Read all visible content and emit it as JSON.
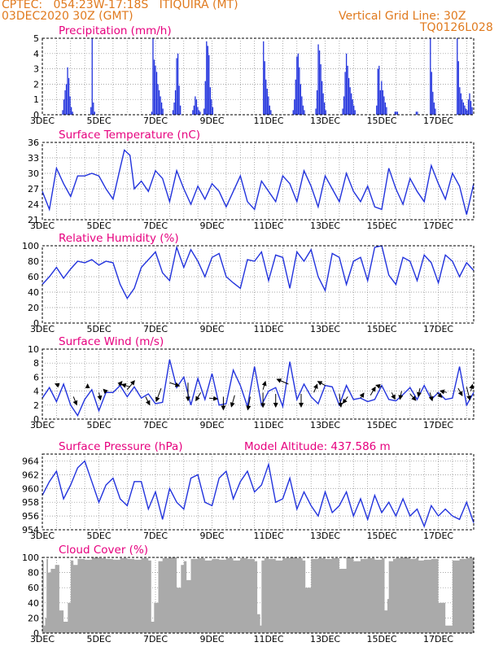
{
  "header": {
    "station_line": "CPTEC:   054:23W-17:18S   ITIQUIRA (MT)",
    "date_line": "03DEC2020 30Z (GMT)",
    "grid_line": "Vertical Grid Line: 30Z",
    "code": "TQ0126L028"
  },
  "colors": {
    "header": "#e07a1e",
    "title": "#e6007e",
    "series": "#2233dd",
    "cloud": "#aaaaaa"
  },
  "chart_data": [
    {
      "id": "precip",
      "type": "bar",
      "title": "Precipitation (mm/h)",
      "ylim": [
        0,
        5
      ],
      "yticks": [
        0,
        1,
        2,
        3,
        4,
        5
      ],
      "xlim": [
        3,
        18.25
      ],
      "xticks": [
        "3DEC",
        "5DEC",
        "7DEC",
        "9DEC",
        "11DEC",
        "13DEC",
        "15DEC",
        "17DEC"
      ],
      "bar_color": "#2233dd",
      "events": [
        {
          "x": 3.7,
          "values": [
            0.3,
            1.0,
            1.6,
            2.0,
            3.1,
            2.4,
            1.2,
            0.5,
            0.2
          ]
        },
        {
          "x": 4.7,
          "values": [
            0.5,
            5.0,
            0.8,
            0.2
          ]
        },
        {
          "x": 6.85,
          "values": [
            0.2,
            5.0,
            3.6,
            3.2,
            2.8,
            2.0,
            1.6,
            1.2,
            0.8,
            0.4
          ]
        },
        {
          "x": 7.6,
          "values": [
            0.3,
            0.8,
            1.6,
            3.7,
            4.0,
            1.9,
            0.6
          ]
        },
        {
          "x": 8.3,
          "values": [
            0.3,
            0.6,
            1.2,
            1.0,
            0.5,
            0.3,
            0.2
          ]
        },
        {
          "x": 8.7,
          "values": [
            0.4,
            2.2,
            4.8,
            4.5,
            3.9,
            1.8,
            1.0,
            0.5
          ]
        },
        {
          "x": 10.8,
          "values": [
            4.8,
            3.5,
            2.3,
            1.7,
            1.2,
            0.6,
            0.3
          ]
        },
        {
          "x": 11.85,
          "values": [
            0.3,
            1.0,
            2.3,
            3.8,
            4.0,
            3.1,
            2.0,
            1.2,
            0.6,
            0.3
          ]
        },
        {
          "x": 12.65,
          "values": [
            0.4,
            1.6,
            4.6,
            4.2,
            3.3,
            2.2,
            1.4,
            0.8,
            0.3
          ]
        },
        {
          "x": 13.6,
          "values": [
            0.4,
            1.2,
            2.8,
            4.0,
            3.2,
            2.4,
            1.8,
            1.4,
            1.0,
            0.6,
            0.3
          ]
        },
        {
          "x": 14.8,
          "values": [
            0.6,
            3.0,
            3.2,
            1.6,
            2.2,
            1.6,
            1.2,
            0.8,
            0.5
          ]
        },
        {
          "x": 15.45,
          "values": [
            0.2,
            0.2,
            0.2
          ]
        },
        {
          "x": 16.2,
          "values": [
            0.2,
            0.2
          ]
        },
        {
          "x": 16.7,
          "values": [
            5.0,
            2.8,
            1.5,
            0.8,
            0.4
          ]
        },
        {
          "x": 17.65,
          "values": [
            5.0,
            3.5,
            1.8,
            1.4,
            1.0,
            0.8,
            0.6,
            0.4
          ]
        },
        {
          "x": 18.0,
          "values": [
            0.3,
            1.0,
            1.4,
            0.9,
            0.5
          ]
        }
      ]
    },
    {
      "id": "temp",
      "type": "line",
      "title": "Surface Temperature (nC)",
      "ylim": [
        21,
        36
      ],
      "yticks": [
        21,
        24,
        27,
        30,
        33,
        36
      ],
      "xlim": [
        3,
        18.25
      ],
      "xticks": [
        "3DEC",
        "5DEC",
        "7DEC",
        "9DEC",
        "11DEC",
        "13DEC",
        "15DEC",
        "17DEC"
      ],
      "x": [
        3.0,
        3.25,
        3.5,
        3.75,
        4.0,
        4.25,
        4.5,
        4.75,
        5.0,
        5.25,
        5.5,
        5.75,
        5.9,
        6.1,
        6.25,
        6.5,
        6.75,
        7.0,
        7.25,
        7.5,
        7.75,
        8.0,
        8.25,
        8.5,
        8.75,
        9.0,
        9.25,
        9.5,
        9.75,
        10.0,
        10.25,
        10.5,
        10.75,
        11.0,
        11.25,
        11.5,
        11.75,
        12.0,
        12.25,
        12.5,
        12.75,
        13.0,
        13.25,
        13.5,
        13.75,
        14.0,
        14.25,
        14.5,
        14.75,
        15.0,
        15.25,
        15.5,
        15.75,
        16.0,
        16.25,
        16.5,
        16.75,
        17.0,
        17.25,
        17.5,
        17.75,
        18.0,
        18.25
      ],
      "y": [
        26.5,
        23.0,
        31.0,
        28.0,
        25.5,
        29.5,
        29.5,
        30.0,
        29.5,
        27.0,
        25.0,
        31.0,
        34.5,
        33.5,
        27.0,
        28.5,
        26.5,
        30.5,
        29.0,
        24.5,
        30.5,
        27.0,
        24.0,
        27.5,
        25.0,
        28.0,
        26.5,
        23.5,
        26.5,
        29.5,
        24.5,
        23.0,
        28.5,
        26.5,
        24.5,
        29.5,
        28.0,
        24.5,
        30.5,
        27.5,
        23.5,
        29.5,
        27.0,
        24.5,
        30.0,
        26.5,
        24.5,
        27.5,
        23.5,
        23.0,
        31.0,
        27.0,
        24.0,
        29.0,
        26.5,
        24.5,
        31.5,
        28.0,
        25.0,
        30.0,
        27.5,
        22.0,
        28.0
      ]
    },
    {
      "id": "rh",
      "type": "line",
      "title": "Relative Humidity (%)",
      "ylim": [
        0,
        100
      ],
      "yticks": [
        0,
        20,
        40,
        60,
        80,
        100
      ],
      "xlim": [
        3,
        18.25
      ],
      "xticks": [
        "3DEC",
        "5DEC",
        "7DEC",
        "9DEC",
        "11DEC",
        "13DEC",
        "15DEC",
        "17DEC"
      ],
      "x": [
        3.0,
        3.25,
        3.5,
        3.75,
        4.0,
        4.25,
        4.5,
        4.75,
        5.0,
        5.25,
        5.5,
        5.75,
        6.0,
        6.25,
        6.5,
        6.75,
        7.0,
        7.25,
        7.5,
        7.75,
        8.0,
        8.25,
        8.5,
        8.75,
        9.0,
        9.25,
        9.5,
        9.75,
        10.0,
        10.25,
        10.5,
        10.75,
        11.0,
        11.25,
        11.5,
        11.75,
        12.0,
        12.25,
        12.5,
        12.75,
        13.0,
        13.25,
        13.5,
        13.75,
        14.0,
        14.25,
        14.5,
        14.75,
        15.0,
        15.25,
        15.5,
        15.75,
        16.0,
        16.25,
        16.5,
        16.75,
        17.0,
        17.25,
        17.5,
        17.75,
        18.0,
        18.25
      ],
      "y": [
        50,
        60,
        72,
        58,
        70,
        80,
        78,
        82,
        75,
        80,
        78,
        50,
        32,
        45,
        72,
        82,
        92,
        65,
        55,
        98,
        72,
        95,
        80,
        60,
        85,
        90,
        60,
        52,
        45,
        82,
        80,
        92,
        55,
        88,
        85,
        45,
        92,
        80,
        95,
        60,
        42,
        90,
        85,
        50,
        80,
        85,
        55,
        98,
        100,
        62,
        50,
        85,
        80,
        55,
        88,
        78,
        52,
        88,
        80,
        60,
        78,
        68
      ]
    },
    {
      "id": "wind",
      "type": "line",
      "title": "Surface Wind (m/s)",
      "ylim": [
        0,
        10
      ],
      "yticks": [
        0,
        2,
        4,
        6,
        8,
        10
      ],
      "xlim": [
        3,
        18.25
      ],
      "xticks": [
        "3DEC",
        "5DEC",
        "7DEC",
        "9DEC",
        "11DEC",
        "13DEC",
        "15DEC",
        "17DEC"
      ],
      "x": [
        3.0,
        3.25,
        3.5,
        3.75,
        4.0,
        4.25,
        4.5,
        4.75,
        5.0,
        5.25,
        5.5,
        5.75,
        6.0,
        6.25,
        6.5,
        6.75,
        7.0,
        7.25,
        7.5,
        7.75,
        8.0,
        8.25,
        8.5,
        8.75,
        9.0,
        9.25,
        9.5,
        9.75,
        10.0,
        10.25,
        10.5,
        10.75,
        11.0,
        11.25,
        11.5,
        11.75,
        12.0,
        12.25,
        12.5,
        12.75,
        13.0,
        13.25,
        13.5,
        13.75,
        14.0,
        14.25,
        14.5,
        14.75,
        15.0,
        15.25,
        15.5,
        15.75,
        16.0,
        16.25,
        16.5,
        16.75,
        17.0,
        17.25,
        17.5,
        17.75,
        18.0,
        18.25
      ],
      "y": [
        3.0,
        4.5,
        2.5,
        5.0,
        2.0,
        0.5,
        2.8,
        4.2,
        1.2,
        3.8,
        3.8,
        4.8,
        3.2,
        4.6,
        3.0,
        3.6,
        2.2,
        2.4,
        8.5,
        4.5,
        6.0,
        2.0,
        5.8,
        2.8,
        6.5,
        2.0,
        2.2,
        7.0,
        4.8,
        1.8,
        7.5,
        2.0,
        4.0,
        4.5,
        1.8,
        8.2,
        2.8,
        5.0,
        3.2,
        2.2,
        4.8,
        4.6,
        2.0,
        4.8,
        2.8,
        3.0,
        2.5,
        2.8,
        4.8,
        2.8,
        2.6,
        3.5,
        4.5,
        2.8,
        4.8,
        2.8,
        3.8,
        2.8,
        3.0,
        7.5,
        2.0,
        3.8
      ],
      "arrows": [
        {
          "x": 3.6,
          "y": 4.8,
          "dx": -5,
          "dy": -2
        },
        {
          "x": 4.1,
          "y": 3.2,
          "dx": 4,
          "dy": 10
        },
        {
          "x": 4.6,
          "y": 4.4,
          "dx": 0,
          "dy": -5
        },
        {
          "x": 5.0,
          "y": 3.8,
          "dx": 2,
          "dy": 9
        },
        {
          "x": 5.25,
          "y": 3.9,
          "dx": -3,
          "dy": -3
        },
        {
          "x": 5.7,
          "y": 4.8,
          "dx": 4,
          "dy": -5
        },
        {
          "x": 6.0,
          "y": 4.2,
          "dx": 9,
          "dy": -11
        },
        {
          "x": 6.1,
          "y": 4.6,
          "dx": -10,
          "dy": -3
        },
        {
          "x": 6.65,
          "y": 3.2,
          "dx": 5,
          "dy": 10
        },
        {
          "x": 7.2,
          "y": 4.4,
          "dx": -6,
          "dy": 16
        },
        {
          "x": 7.5,
          "y": 5.2,
          "dx": 12,
          "dy": 4
        },
        {
          "x": 8.15,
          "y": 5.2,
          "dx": 0,
          "dy": 22
        },
        {
          "x": 8.6,
          "y": 3.8,
          "dx": -6,
          "dy": 10
        },
        {
          "x": 8.9,
          "y": 3.0,
          "dx": 10,
          "dy": 1
        },
        {
          "x": 9.4,
          "y": 3.2,
          "dx": 0,
          "dy": 16
        },
        {
          "x": 9.8,
          "y": 3.4,
          "dx": -4,
          "dy": 14
        },
        {
          "x": 10.35,
          "y": 3.2,
          "dx": -3,
          "dy": 16
        },
        {
          "x": 10.8,
          "y": 3.8,
          "dx": 0,
          "dy": 18
        },
        {
          "x": 10.8,
          "y": 4.2,
          "dx": 3,
          "dy": -10
        },
        {
          "x": 11.25,
          "y": 3.6,
          "dx": 0,
          "dy": 16
        },
        {
          "x": 11.7,
          "y": 5.0,
          "dx": -14,
          "dy": -6
        },
        {
          "x": 12.15,
          "y": 3.6,
          "dx": 0,
          "dy": 16
        },
        {
          "x": 12.6,
          "y": 3.8,
          "dx": 4,
          "dy": -10
        },
        {
          "x": 13.0,
          "y": 4.8,
          "dx": -9,
          "dy": -5
        },
        {
          "x": 13.5,
          "y": 3.6,
          "dx": 2,
          "dy": 16
        },
        {
          "x": 13.8,
          "y": 3.2,
          "dx": -6,
          "dy": 8
        },
        {
          "x": 14.25,
          "y": 3.0,
          "dx": 4,
          "dy": -6
        },
        {
          "x": 14.6,
          "y": 3.4,
          "dx": 6,
          "dy": -10
        },
        {
          "x": 15.0,
          "y": 4.6,
          "dx": -7,
          "dy": -2
        },
        {
          "x": 15.35,
          "y": 3.8,
          "dx": 4,
          "dy": 8
        },
        {
          "x": 15.7,
          "y": 4.0,
          "dx": -2,
          "dy": 10
        },
        {
          "x": 16.0,
          "y": 3.6,
          "dx": 7,
          "dy": 8
        },
        {
          "x": 16.35,
          "y": 4.4,
          "dx": -2,
          "dy": 10
        },
        {
          "x": 16.7,
          "y": 3.8,
          "dx": 3,
          "dy": 10
        },
        {
          "x": 16.95,
          "y": 3.8,
          "dx": 6,
          "dy": 6
        },
        {
          "x": 17.3,
          "y": 3.8,
          "dx": -8,
          "dy": -2
        },
        {
          "x": 17.7,
          "y": 4.4,
          "dx": 5,
          "dy": 9
        },
        {
          "x": 18.0,
          "y": 4.6,
          "dx": 4,
          "dy": 16
        },
        {
          "x": 18.15,
          "y": 4.0,
          "dx": 2,
          "dy": -8
        }
      ]
    },
    {
      "id": "press",
      "type": "line",
      "title": "Surface Pressure (hPa)",
      "annotation": "Model Altitude: 437.586  m",
      "ylim": [
        954,
        965
      ],
      "yticks": [
        954,
        956,
        958,
        960,
        962,
        964
      ],
      "xlim": [
        3,
        18.25
      ],
      "xticks": [
        "3DEC",
        "5DEC",
        "7DEC",
        "9DEC",
        "11DEC",
        "13DEC",
        "15DEC",
        "17DEC"
      ],
      "x": [
        3.0,
        3.25,
        3.5,
        3.75,
        4.0,
        4.25,
        4.5,
        4.75,
        5.0,
        5.25,
        5.5,
        5.75,
        6.0,
        6.25,
        6.5,
        6.75,
        7.0,
        7.25,
        7.5,
        7.75,
        8.0,
        8.25,
        8.5,
        8.75,
        9.0,
        9.25,
        9.5,
        9.75,
        10.0,
        10.25,
        10.5,
        10.75,
        11.0,
        11.25,
        11.5,
        11.75,
        12.0,
        12.25,
        12.5,
        12.75,
        13.0,
        13.25,
        13.5,
        13.75,
        14.0,
        14.25,
        14.5,
        14.75,
        15.0,
        15.25,
        15.5,
        15.75,
        16.0,
        16.25,
        16.5,
        16.75,
        17.0,
        17.25,
        17.5,
        17.75,
        18.0,
        18.25
      ],
      "y": [
        959.0,
        961.0,
        962.5,
        958.5,
        960.5,
        963.0,
        964.0,
        961.0,
        958.0,
        960.5,
        961.5,
        958.5,
        957.5,
        961.0,
        961.0,
        957.0,
        959.5,
        955.5,
        960.0,
        958.0,
        957.0,
        961.5,
        962.0,
        958.0,
        957.5,
        961.5,
        962.5,
        958.5,
        961.0,
        962.5,
        959.5,
        960.5,
        963.5,
        958.0,
        958.5,
        961.5,
        957.0,
        959.5,
        957.5,
        956.0,
        959.5,
        956.5,
        957.5,
        959.5,
        956.0,
        958.5,
        955.5,
        959.0,
        956.5,
        958.0,
        956.0,
        958.5,
        956.0,
        957.0,
        954.5,
        957.5,
        956.0,
        957.0,
        956.0,
        955.5,
        958.0,
        955.0
      ]
    },
    {
      "id": "cloud",
      "type": "area",
      "title": "Cloud Cover (%)",
      "ylim": [
        0,
        100
      ],
      "yticks": [
        0,
        20,
        40,
        60,
        80,
        100
      ],
      "xlim": [
        3,
        18.25
      ],
      "xticks": [
        "3DEC",
        "5DEC",
        "7DEC",
        "9DEC",
        "11DEC",
        "13DEC",
        "15DEC",
        "17DEC"
      ],
      "x": [
        3.0,
        3.05,
        3.1,
        3.15,
        3.2,
        3.3,
        3.45,
        3.6,
        3.75,
        3.9,
        4.0,
        4.1,
        4.25,
        4.5,
        4.75,
        5.0,
        5.25,
        5.5,
        5.75,
        6.0,
        6.25,
        6.5,
        6.75,
        6.85,
        6.95,
        7.1,
        7.25,
        7.5,
        7.75,
        7.9,
        8.0,
        8.1,
        8.25,
        8.5,
        8.75,
        9.0,
        9.25,
        9.5,
        9.75,
        10.0,
        10.25,
        10.5,
        10.6,
        10.7,
        10.75,
        10.85,
        11.0,
        11.25,
        11.5,
        11.75,
        12.0,
        12.2,
        12.3,
        12.5,
        12.75,
        13.0,
        13.25,
        13.5,
        13.75,
        14.0,
        14.25,
        14.5,
        14.75,
        15.0,
        15.1,
        15.2,
        15.25,
        15.4,
        15.5,
        15.75,
        16.0,
        16.2,
        16.3,
        16.5,
        16.75,
        17.0,
        17.25,
        17.5,
        17.75,
        18.0,
        18.25
      ],
      "y": [
        95,
        10,
        20,
        98,
        80,
        85,
        90,
        30,
        15,
        40,
        96,
        90,
        98,
        97,
        100,
        99,
        98,
        97,
        99,
        98,
        97,
        99,
        96,
        15,
        40,
        95,
        99,
        100,
        60,
        90,
        95,
        70,
        98,
        99,
        96,
        98,
        97,
        99,
        96,
        99,
        98,
        95,
        25,
        10,
        96,
        99,
        98,
        96,
        99,
        100,
        99,
        96,
        60,
        98,
        99,
        98,
        99,
        85,
        100,
        95,
        98,
        99,
        97,
        99,
        30,
        45,
        95,
        98,
        99,
        100,
        98,
        99,
        96,
        97,
        98,
        40,
        10,
        96,
        98,
        99,
        50
      ]
    }
  ]
}
